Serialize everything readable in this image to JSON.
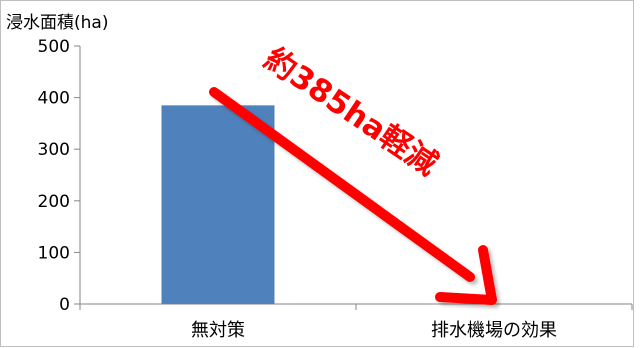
{
  "chart_data": {
    "type": "bar",
    "ylabel": "浸水面積(ha)",
    "ylim": [
      0,
      500
    ],
    "yticks": [
      0,
      100,
      200,
      300,
      400,
      500
    ],
    "categories": [
      "無対策",
      "排水機場の効果"
    ],
    "values": [
      385,
      0
    ],
    "grid": false,
    "annotation": {
      "text": "約385ha軽減",
      "arrow": "from 無対策 bar top to 排水機場の効果 baseline"
    },
    "colors": {
      "bar": "#4f81bd",
      "arrow": "#ff0000",
      "annotation_text": "#ff0000"
    }
  }
}
